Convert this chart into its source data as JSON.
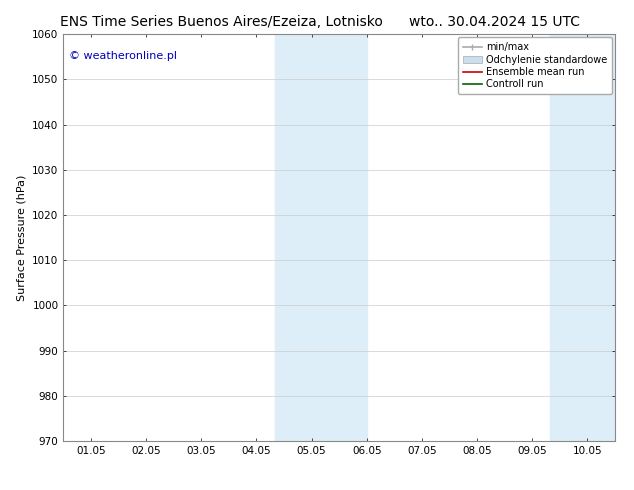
{
  "title_left": "ENS Time Series Buenos Aires/Ezeiza, Lotnisko",
  "title_right": "wto.. 30.04.2024 15 UTC",
  "ylabel": "Surface Pressure (hPa)",
  "ylim": [
    970,
    1060
  ],
  "yticks": [
    970,
    980,
    990,
    1000,
    1010,
    1020,
    1030,
    1040,
    1050,
    1060
  ],
  "xlim": [
    -0.5,
    9.5
  ],
  "xtick_labels": [
    "01.05",
    "02.05",
    "03.05",
    "04.05",
    "05.05",
    "06.05",
    "07.05",
    "08.05",
    "09.05",
    "10.05"
  ],
  "xtick_positions": [
    0,
    1,
    2,
    3,
    4,
    5,
    6,
    7,
    8,
    9
  ],
  "shaded_regions": [
    {
      "xmin": 3.33,
      "xmax": 4.0,
      "color": "#ddeef8"
    },
    {
      "xmin": 4.0,
      "xmax": 5.0,
      "color": "#ddeef8"
    },
    {
      "xmin": 8.33,
      "xmax": 9.0,
      "color": "#ddeef8"
    },
    {
      "xmin": 9.0,
      "xmax": 9.5,
      "color": "#ddeef8"
    }
  ],
  "watermark_text": "© weatheronline.pl",
  "watermark_color": "#0000bb",
  "watermark_fontsize": 8,
  "legend_entries": [
    {
      "label": "min/max",
      "color": "#aaaaaa",
      "linestyle": "-",
      "linewidth": 1.2
    },
    {
      "label": "Odchylenie standardowe",
      "color": "#ccddee",
      "linestyle": "-",
      "linewidth": 6
    },
    {
      "label": "Ensemble mean run",
      "color": "#cc0000",
      "linestyle": "-",
      "linewidth": 1.2
    },
    {
      "label": "Controll run",
      "color": "#006600",
      "linestyle": "-",
      "linewidth": 1.2
    }
  ],
  "background_color": "#ffffff",
  "grid_color": "#cccccc",
  "tick_color": "#000000",
  "spine_color": "#888888",
  "title_fontsize": 10,
  "axis_label_fontsize": 8,
  "tick_fontsize": 7.5,
  "legend_fontsize": 7
}
